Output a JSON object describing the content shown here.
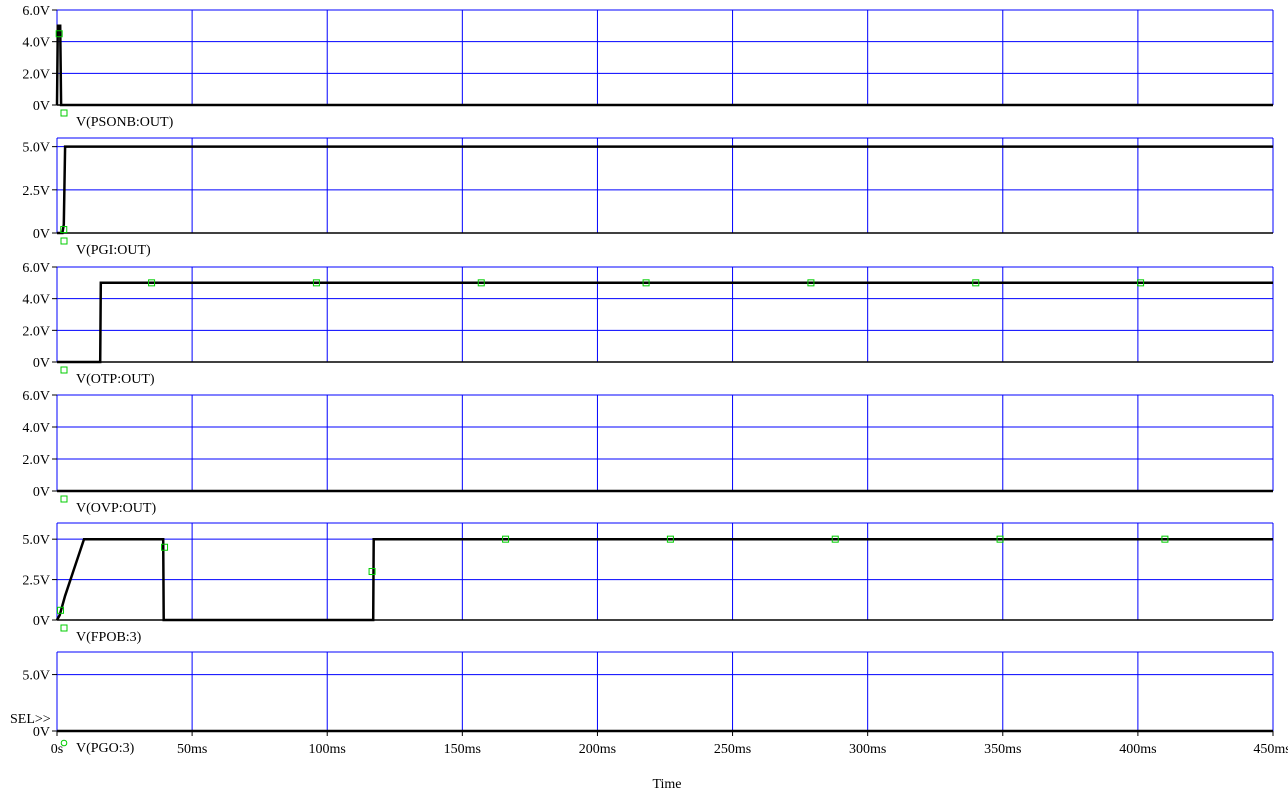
{
  "window": {
    "title": "",
    "sel_marker": "SEL>>"
  },
  "colors": {
    "grid": "#0000ff",
    "trace": "#000000",
    "marker": "#00cc00",
    "background": "#ffffff"
  },
  "chart_data": {
    "type": "line",
    "xlabel": "Time",
    "x_tick_labels": [
      "0s",
      "50ms",
      "100ms",
      "150ms",
      "200ms",
      "250ms",
      "300ms",
      "350ms",
      "400ms",
      "450ms"
    ],
    "x_ticks": [
      0,
      50,
      100,
      150,
      200,
      250,
      300,
      350,
      400,
      450
    ],
    "xlim": [
      0,
      450
    ],
    "x_unit": "ms",
    "grid": true,
    "panels": [
      {
        "trace": "V(PSONB:OUT)",
        "marker_shape": "square",
        "ylim": [
          0,
          6
        ],
        "y_ticks": [
          0,
          2,
          4,
          6
        ],
        "y_tick_labels": [
          "0V",
          "2.0V",
          "4.0V",
          "6.0V"
        ],
        "points": [
          [
            0,
            0
          ],
          [
            0.3,
            5
          ],
          [
            1.2,
            5
          ],
          [
            1.5,
            0
          ],
          [
            450,
            0
          ]
        ],
        "markers": [
          [
            0.8,
            4.5
          ]
        ]
      },
      {
        "trace": "V(PGI:OUT)",
        "marker_shape": "square",
        "ylim": [
          0,
          5.5
        ],
        "y_ticks": [
          0,
          2.5,
          5
        ],
        "y_tick_labels": [
          "0V",
          "2.5V",
          "5.0V"
        ],
        "points": [
          [
            0,
            0
          ],
          [
            2,
            0
          ],
          [
            2.5,
            0.5
          ],
          [
            3,
            5
          ],
          [
            450,
            5
          ]
        ],
        "markers": [
          [
            2.5,
            0.2
          ]
        ]
      },
      {
        "trace": "V(OTP:OUT)",
        "marker_shape": "square",
        "ylim": [
          0,
          6
        ],
        "y_ticks": [
          0,
          2,
          4,
          6
        ],
        "y_tick_labels": [
          "0V",
          "2.0V",
          "4.0V",
          "6.0V"
        ],
        "points": [
          [
            0,
            0
          ],
          [
            16,
            0
          ],
          [
            16.2,
            5
          ],
          [
            450,
            5
          ]
        ],
        "markers": [
          [
            35,
            5
          ],
          [
            96,
            5
          ],
          [
            157,
            5
          ],
          [
            218,
            5
          ],
          [
            279,
            5
          ],
          [
            340,
            5
          ],
          [
            401,
            5
          ]
        ]
      },
      {
        "trace": "V(OVP:OUT)",
        "marker_shape": "square",
        "ylim": [
          0,
          6
        ],
        "y_ticks": [
          0,
          2,
          4,
          6
        ],
        "y_tick_labels": [
          "0V",
          "2.0V",
          "4.0V",
          "6.0V"
        ],
        "points": [
          [
            0,
            0
          ],
          [
            450,
            0
          ]
        ],
        "markers": []
      },
      {
        "trace": "V(FPOB:3)",
        "marker_shape": "square",
        "ylim": [
          0,
          6
        ],
        "y_ticks": [
          0,
          2.5,
          5
        ],
        "y_tick_labels": [
          "0V",
          "2.5V",
          "5.0V"
        ],
        "points": [
          [
            0,
            0
          ],
          [
            1,
            0.3
          ],
          [
            3,
            1.5
          ],
          [
            6,
            3
          ],
          [
            10,
            5
          ],
          [
            39.3,
            5
          ],
          [
            39.5,
            0
          ],
          [
            117,
            0
          ],
          [
            117.2,
            5
          ],
          [
            450,
            5
          ]
        ],
        "markers": [
          [
            1.3,
            0.6
          ],
          [
            39.8,
            4.5
          ],
          [
            116.6,
            3
          ],
          [
            166,
            5
          ],
          [
            227,
            5
          ],
          [
            288,
            5
          ],
          [
            349,
            5
          ],
          [
            410,
            5
          ]
        ]
      },
      {
        "trace": "V(PGO:3)",
        "marker_shape": "circle",
        "ylim": [
          0,
          7
        ],
        "y_ticks": [
          0,
          5
        ],
        "y_tick_labels": [
          "0V",
          "5.0V"
        ],
        "points": [
          [
            0,
            0
          ],
          [
            450,
            0
          ]
        ],
        "markers": []
      }
    ]
  }
}
